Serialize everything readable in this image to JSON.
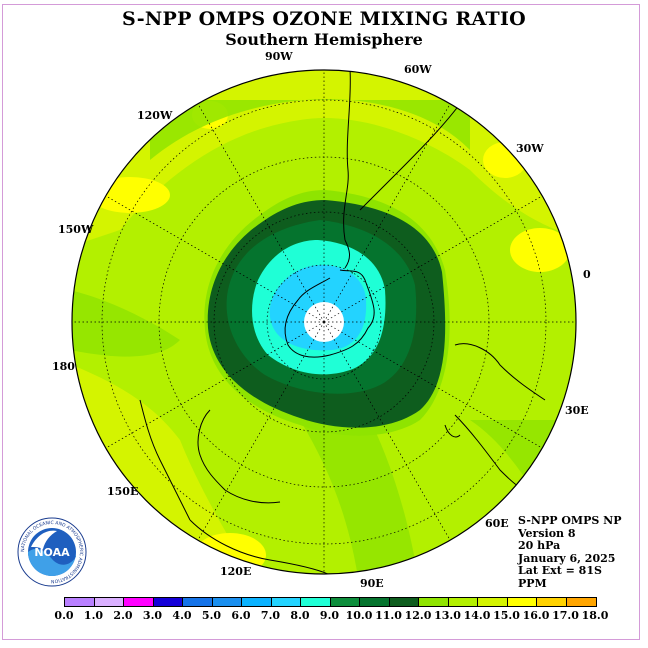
{
  "header": {
    "title": "S-NPP OMPS OZONE MIXING RATIO",
    "subtitle": "Southern Hemisphere"
  },
  "map": {
    "projection": "south-polar-stereographic",
    "center_value_missing": true,
    "longitude_labels": [
      "0",
      "30E",
      "60E",
      "90E",
      "120E",
      "150E",
      "180",
      "150W",
      "120W",
      "90W",
      "60W",
      "30W"
    ]
  },
  "info": {
    "lines": [
      "S-NPP OMPS NP",
      "Version 8",
      "20 hPa",
      "January 6, 2025",
      "Lat Ext = 81S",
      "PPM"
    ]
  },
  "colorbar": {
    "colors": [
      "#b980ff",
      "#dab0ff",
      "#ff00ff",
      "#1400d8",
      "#1573e8",
      "#1a8fef",
      "#0ab2ff",
      "#23d3ff",
      "#1fffd6",
      "#0d8e3c",
      "#05742e",
      "#0e5d1e",
      "#8fe400",
      "#b3f000",
      "#d4f400",
      "#ffff00",
      "#ffd200",
      "#ffa500",
      "#ff7300",
      "#ff0000",
      "#cc0000",
      "#7f4c20"
    ],
    "tick_labels": [
      "0.0",
      "1.0",
      "2.0",
      "3.0",
      "4.0",
      "5.0",
      "6.0",
      "7.0",
      "8.0",
      "9.0",
      "10.0",
      "11.0",
      "12.0",
      "13.0",
      "14.0",
      "15.0",
      "16.0",
      "17.0",
      "18.0"
    ]
  },
  "logo": {
    "text": "NOAA",
    "ring_text": "NATIONAL OCEANIC AND ATMOSPHERIC ADMINISTRATION"
  }
}
